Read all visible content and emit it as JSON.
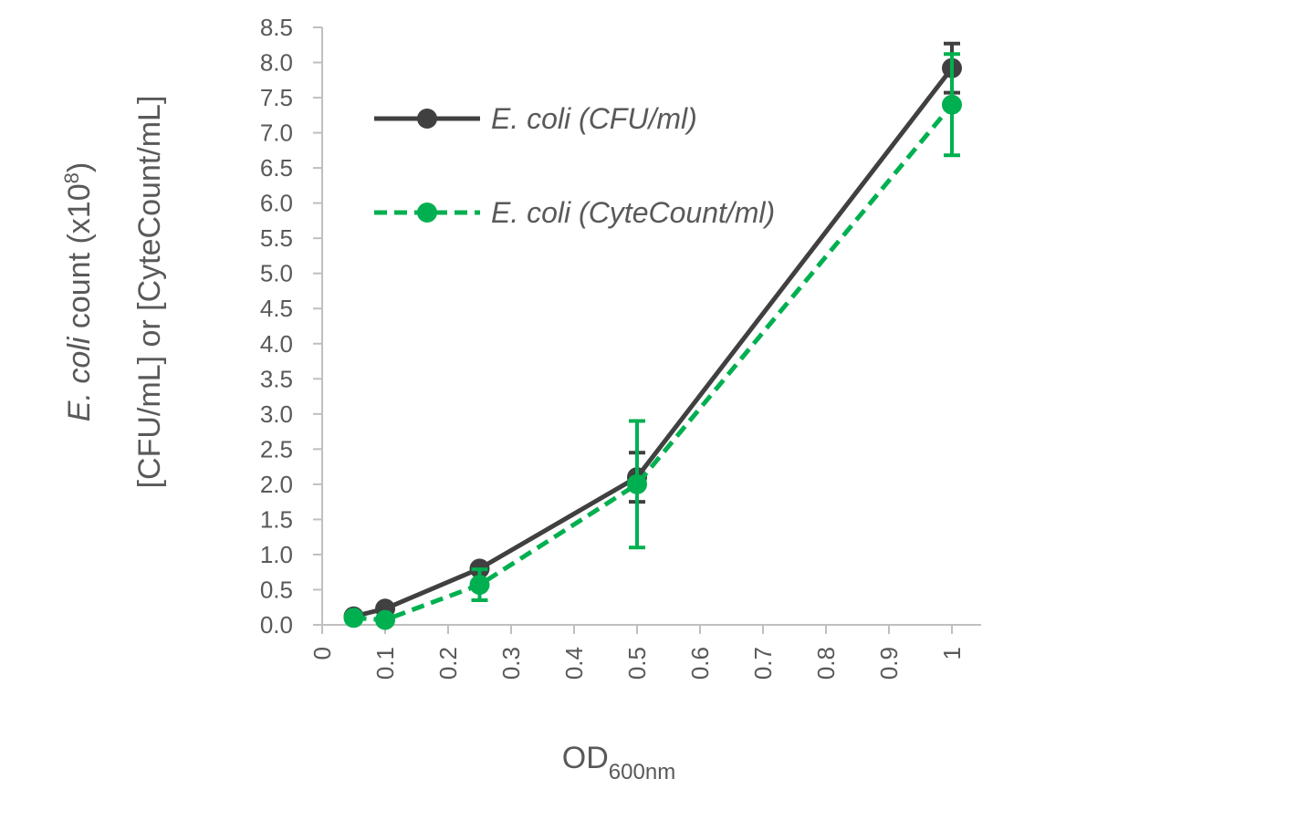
{
  "chart_data": {
    "type": "line",
    "x": [
      0.05,
      0.1,
      0.25,
      0.5,
      1.0
    ],
    "series": [
      {
        "name": "E. coli (CFU/ml)",
        "color": "#404040",
        "dash": "solid",
        "values": [
          0.12,
          0.23,
          0.8,
          2.1,
          7.92
        ],
        "error": [
          0.03,
          0.04,
          0.06,
          0.35,
          0.35
        ]
      },
      {
        "name": "E. coli (CyteCount/ml)",
        "color": "#00b050",
        "dash": "dashed",
        "values": [
          0.1,
          0.07,
          0.57,
          2.0,
          7.4
        ],
        "error": [
          0.03,
          0.03,
          0.22,
          0.9,
          0.72
        ]
      }
    ],
    "xlim": [
      0,
      1.0
    ],
    "ylim": [
      0,
      8.5
    ],
    "x_ticks": [
      "0",
      "0.1",
      "0.2",
      "0.3",
      "0.4",
      "0.5",
      "0.6",
      "0.7",
      "0.8",
      "0.9",
      "1"
    ],
    "y_ticks": [
      "0.0",
      "0.5",
      "1.0",
      "1.5",
      "2.0",
      "2.5",
      "3.0",
      "3.5",
      "4.0",
      "4.5",
      "5.0",
      "5.5",
      "6.0",
      "6.5",
      "7.0",
      "7.5",
      "8.0",
      "8.5"
    ],
    "xlabel": {
      "main": "OD",
      "sub": "600nm"
    },
    "ylabel": {
      "line1_italic": "E. coli",
      "line1_rest": " count (x10",
      "line1_sup": "8",
      "line1_end": ")",
      "line2": "[CFU/mL] or [CyteCount/mL]"
    },
    "legend_position": "top-left",
    "grid": false
  }
}
